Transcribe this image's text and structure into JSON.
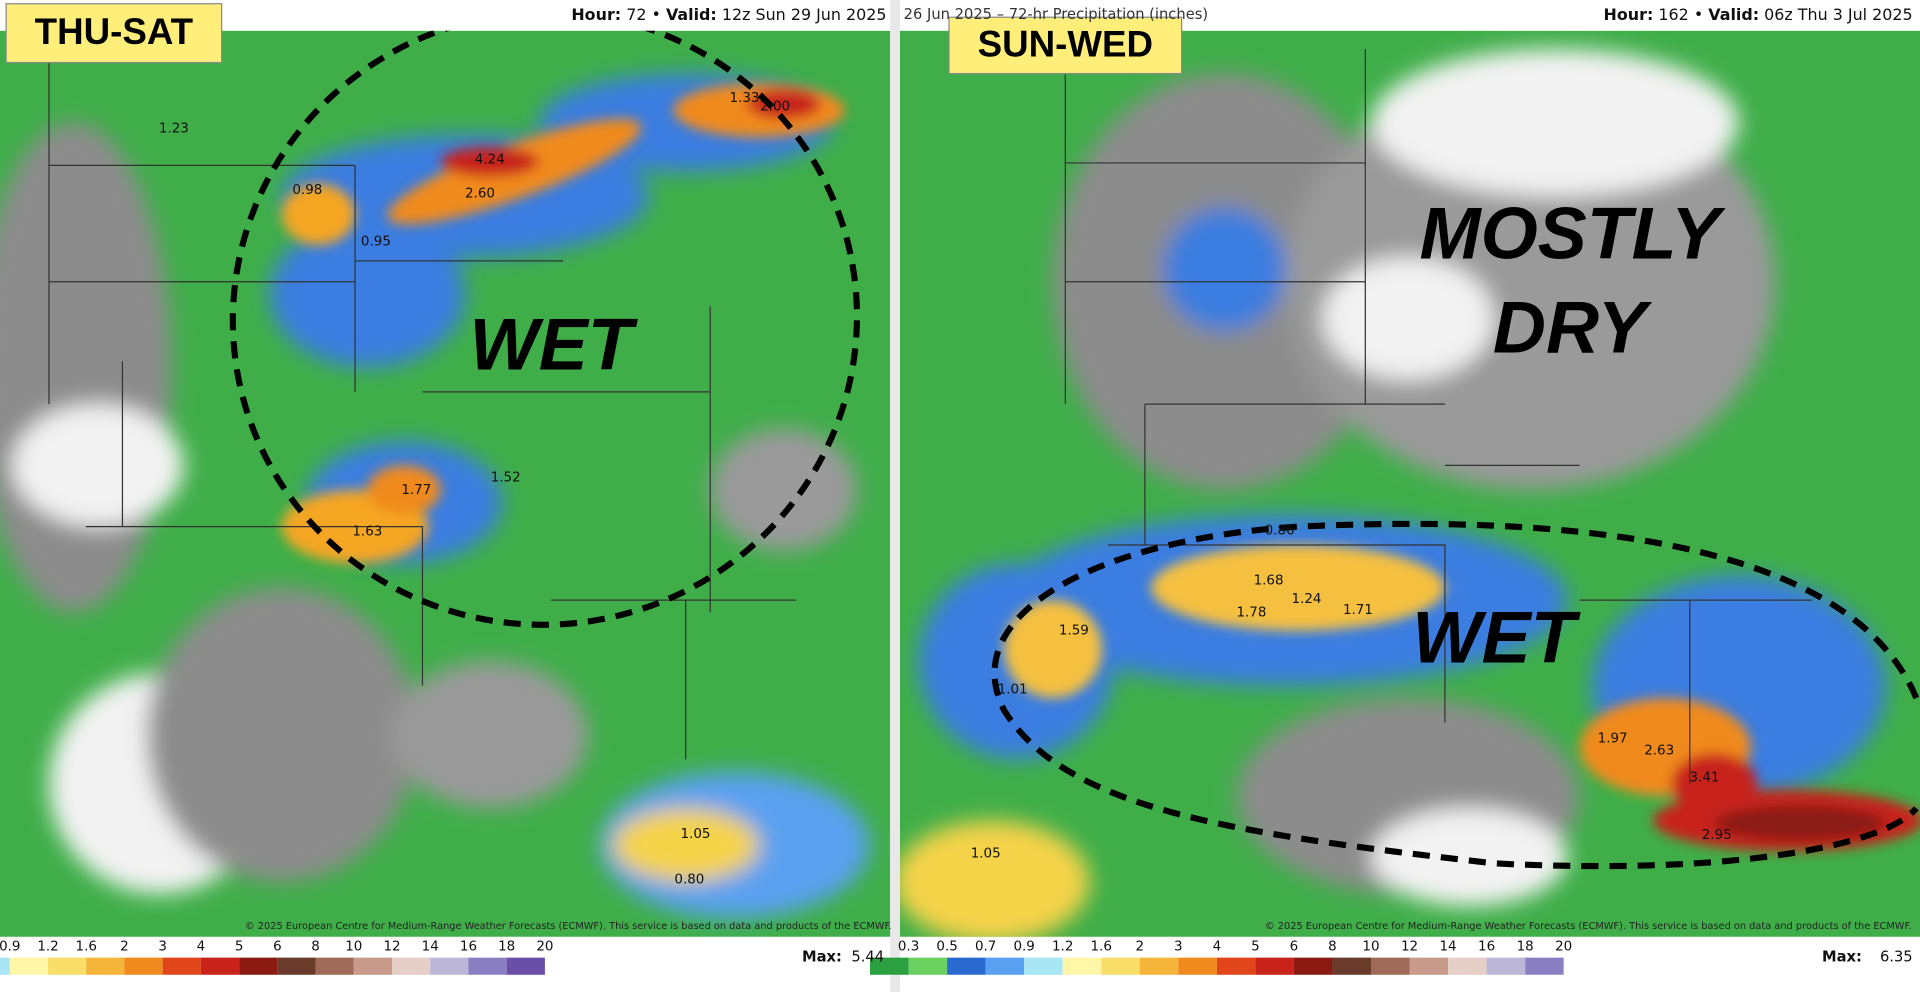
{
  "left": {
    "period": "THU-SAT",
    "header_hour_label": "Hour:",
    "header_hour": 72,
    "header_valid_label": "Valid:",
    "header_valid": "12z Sun 29 Jun 2025",
    "region_label": "WET",
    "amounts": [
      4.24,
      2.6,
      1.52,
      1.77,
      1.63,
      2.0,
      1.33,
      1.23,
      0.98,
      1.05,
      0.8,
      0.95
    ],
    "amount_labels": [
      "4.24",
      "2.60",
      "1.52",
      "1.77",
      "1.63",
      "2.00",
      "1.33",
      "1.23",
      "0.98",
      "1.05",
      "0.80",
      "0.95"
    ],
    "colorbar_ticks": [
      0.9,
      1.2,
      1.6,
      2,
      3,
      4,
      5,
      6,
      8,
      10,
      12,
      14,
      16,
      18,
      20
    ],
    "max_label": "Max:",
    "max_value": 5.44,
    "copyright": "© 2025 European Centre for Medium-Range Weather Forecasts (ECMWF). This service is based on data and products of the ECMWF."
  },
  "right": {
    "period": "SUN-WED",
    "header_title": "26 Jun 2025 – 72-hr Precipitation (inches)",
    "header_hour_label": "Hour:",
    "header_hour": 162,
    "header_valid_label": "Valid:",
    "header_valid": "06z Thu 3 Jul 2025",
    "dry_label_1": "MOSTLY",
    "dry_label_2": "DRY",
    "region_label": "WET",
    "amounts": [
      3.41,
      2.63,
      2.95,
      1.97,
      1.68,
      1.71,
      1.24,
      1.78,
      1.59,
      1.05,
      1.01,
      0.86
    ],
    "amount_labels": [
      "3.41",
      "2.63",
      "2.95",
      "1.97",
      "1.68",
      "1.71",
      "1.24",
      "1.78",
      "1.59",
      "1.05",
      "1.01",
      "0.86"
    ],
    "colorbar_ticks": [
      0.3,
      0.5,
      0.7,
      0.9,
      1.2,
      1.6,
      2,
      3,
      4,
      5,
      6,
      8,
      10,
      12,
      14,
      16,
      18,
      20
    ],
    "max_label": "Max:",
    "max_value": 6.35,
    "copyright": "© 2025 European Centre for Medium-Range Weather Forecasts (ECMWF). This service is based on data and products of the ECMWF."
  }
}
